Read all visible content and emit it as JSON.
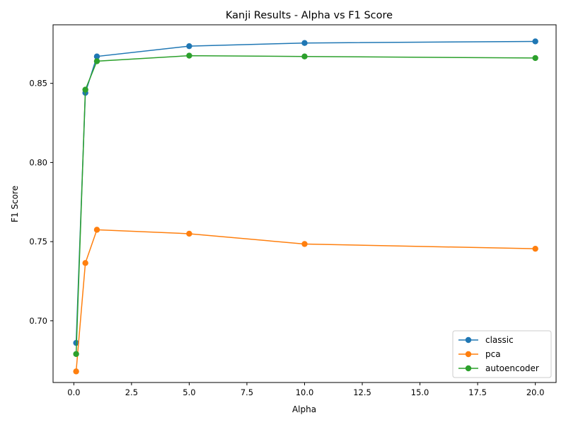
{
  "chart_data": {
    "type": "line",
    "title": "Kanji Results - Alpha vs F1 Score",
    "xlabel": "Alpha",
    "ylabel": "F1 Score",
    "xlim": [
      -0.9,
      20.9
    ],
    "ylim": [
      0.661,
      0.887
    ],
    "x_ticks": [
      0.0,
      2.5,
      5.0,
      7.5,
      10.0,
      12.5,
      15.0,
      17.5,
      20.0
    ],
    "x_tick_labels": [
      "0.0",
      "2.5",
      "5.0",
      "7.5",
      "10.0",
      "12.5",
      "15.0",
      "17.5",
      "20.0"
    ],
    "y_ticks": [
      0.7,
      0.75,
      0.8,
      0.85
    ],
    "y_tick_labels": [
      "0.70",
      "0.75",
      "0.80",
      "0.85"
    ],
    "grid": false,
    "legend_position": "bottom-right",
    "x": [
      0.1,
      0.5,
      1,
      5,
      10,
      20
    ],
    "series": [
      {
        "name": "classic",
        "color": "#1f77b4",
        "values": [
          0.686,
          0.844,
          0.867,
          0.8735,
          0.8755,
          0.8765
        ]
      },
      {
        "name": "pca",
        "color": "#ff7f0e",
        "values": [
          0.668,
          0.7365,
          0.7575,
          0.755,
          0.7485,
          0.7455
        ]
      },
      {
        "name": "autoencoder",
        "color": "#2ca02c",
        "values": [
          0.679,
          0.846,
          0.864,
          0.8675,
          0.867,
          0.866
        ]
      }
    ]
  }
}
